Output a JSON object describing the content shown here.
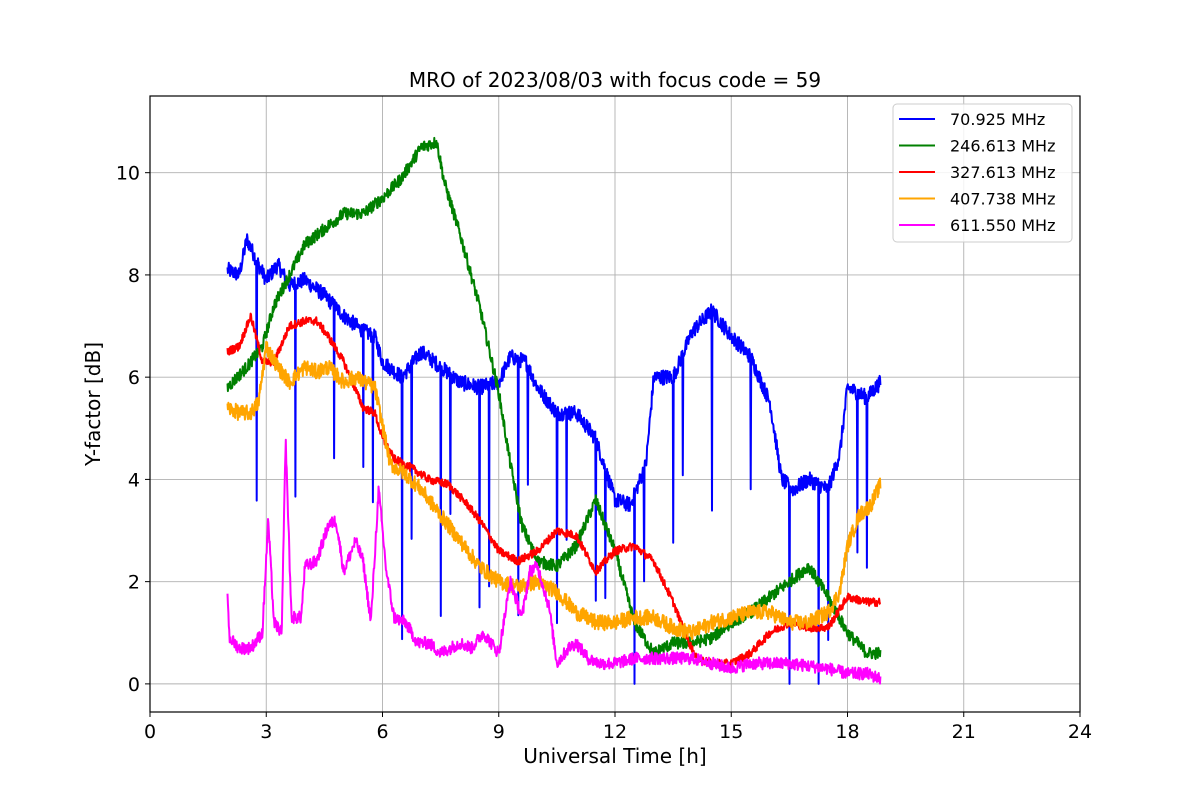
{
  "chart_data": {
    "type": "line",
    "title": "MRO of 2023/08/03 with focus code = 59",
    "xlabel": "Universal Time [h]",
    "ylabel": "Y-factor [dB]",
    "xlim": [
      0,
      24
    ],
    "ylim": [
      -0.55,
      11.5
    ],
    "x_ticks": [
      0,
      3,
      6,
      9,
      12,
      15,
      18,
      21,
      24
    ],
    "y_ticks": [
      0,
      2,
      4,
      6,
      8,
      10
    ],
    "grid": true,
    "legend_position": "top-right",
    "series": [
      {
        "name": " 70.925 MHz",
        "color": "#0000ff",
        "noise": 0.15,
        "dips": true,
        "points": [
          [
            2.0,
            8.1
          ],
          [
            2.3,
            8.0
          ],
          [
            2.5,
            8.7
          ],
          [
            2.8,
            8.2
          ],
          [
            3.0,
            7.9
          ],
          [
            3.3,
            8.2
          ],
          [
            3.6,
            7.8
          ],
          [
            4.0,
            7.9
          ],
          [
            4.5,
            7.6
          ],
          [
            5.0,
            7.2
          ],
          [
            5.5,
            6.9
          ],
          [
            5.8,
            6.8
          ],
          [
            6.0,
            6.3
          ],
          [
            6.5,
            6.0
          ],
          [
            7.0,
            6.5
          ],
          [
            7.5,
            6.2
          ],
          [
            8.0,
            5.9
          ],
          [
            8.5,
            5.8
          ],
          [
            9.0,
            5.9
          ],
          [
            9.3,
            6.4
          ],
          [
            9.7,
            6.3
          ],
          [
            10.0,
            5.8
          ],
          [
            10.5,
            5.3
          ],
          [
            11.0,
            5.3
          ],
          [
            11.5,
            4.8
          ],
          [
            12.0,
            3.6
          ],
          [
            12.4,
            3.5
          ],
          [
            12.8,
            4.3
          ],
          [
            13.0,
            6.0
          ],
          [
            13.5,
            6.0
          ],
          [
            14.0,
            6.9
          ],
          [
            14.5,
            7.3
          ],
          [
            15.0,
            6.8
          ],
          [
            15.5,
            6.4
          ],
          [
            16.0,
            5.5
          ],
          [
            16.3,
            4.0
          ],
          [
            16.6,
            3.8
          ],
          [
            17.0,
            4.0
          ],
          [
            17.5,
            3.8
          ],
          [
            17.8,
            4.5
          ],
          [
            18.0,
            5.8
          ],
          [
            18.5,
            5.6
          ],
          [
            18.85,
            5.9
          ]
        ]
      },
      {
        "name": "246.613 MHz",
        "color": "#008000",
        "noise": 0.12,
        "dips": false,
        "points": [
          [
            2.0,
            5.8
          ],
          [
            2.5,
            6.2
          ],
          [
            2.9,
            6.6
          ],
          [
            3.2,
            7.4
          ],
          [
            3.6,
            8.0
          ],
          [
            4.0,
            8.6
          ],
          [
            4.5,
            8.9
          ],
          [
            5.0,
            9.2
          ],
          [
            5.5,
            9.2
          ],
          [
            6.0,
            9.5
          ],
          [
            6.5,
            9.9
          ],
          [
            7.0,
            10.5
          ],
          [
            7.4,
            10.6
          ],
          [
            7.6,
            9.8
          ],
          [
            8.0,
            8.8
          ],
          [
            8.5,
            7.4
          ],
          [
            9.0,
            5.7
          ],
          [
            9.3,
            4.3
          ],
          [
            9.6,
            3.1
          ],
          [
            10.0,
            2.4
          ],
          [
            10.5,
            2.3
          ],
          [
            11.0,
            2.7
          ],
          [
            11.5,
            3.6
          ],
          [
            12.0,
            2.6
          ],
          [
            12.5,
            1.2
          ],
          [
            13.0,
            0.6
          ],
          [
            13.5,
            0.8
          ],
          [
            14.0,
            0.8
          ],
          [
            14.5,
            0.9
          ],
          [
            15.0,
            1.2
          ],
          [
            15.5,
            1.4
          ],
          [
            16.0,
            1.7
          ],
          [
            16.5,
            2.0
          ],
          [
            17.0,
            2.3
          ],
          [
            17.5,
            1.7
          ],
          [
            18.0,
            1.0
          ],
          [
            18.5,
            0.6
          ],
          [
            18.85,
            0.6
          ]
        ]
      },
      {
        "name": "327.613 MHz",
        "color": "#ff0000",
        "noise": 0.08,
        "dips": false,
        "points": [
          [
            2.0,
            6.5
          ],
          [
            2.3,
            6.6
          ],
          [
            2.6,
            7.2
          ],
          [
            2.9,
            6.3
          ],
          [
            3.2,
            6.3
          ],
          [
            3.6,
            7.0
          ],
          [
            4.0,
            7.1
          ],
          [
            4.3,
            7.1
          ],
          [
            4.6,
            6.8
          ],
          [
            5.0,
            6.3
          ],
          [
            5.5,
            5.4
          ],
          [
            5.8,
            5.3
          ],
          [
            6.0,
            4.8
          ],
          [
            6.3,
            4.4
          ],
          [
            6.8,
            4.2
          ],
          [
            7.2,
            4.0
          ],
          [
            7.7,
            3.9
          ],
          [
            8.2,
            3.5
          ],
          [
            8.6,
            3.1
          ],
          [
            9.0,
            2.6
          ],
          [
            9.5,
            2.4
          ],
          [
            10.0,
            2.6
          ],
          [
            10.5,
            3.0
          ],
          [
            11.0,
            2.9
          ],
          [
            11.5,
            2.2
          ],
          [
            12.0,
            2.6
          ],
          [
            12.5,
            2.7
          ],
          [
            13.0,
            2.4
          ],
          [
            13.5,
            1.6
          ],
          [
            13.8,
            1.0
          ],
          [
            14.1,
            0.5
          ],
          [
            14.5,
            0.4
          ],
          [
            15.0,
            0.4
          ],
          [
            15.5,
            0.6
          ],
          [
            16.0,
            1.0
          ],
          [
            16.5,
            1.2
          ],
          [
            17.0,
            1.1
          ],
          [
            17.5,
            1.1
          ],
          [
            18.0,
            1.7
          ],
          [
            18.5,
            1.6
          ],
          [
            18.85,
            1.6
          ]
        ]
      },
      {
        "name": "407.738 MHz",
        "color": "#ffa500",
        "noise": 0.15,
        "dips": false,
        "points": [
          [
            2.0,
            5.4
          ],
          [
            2.3,
            5.3
          ],
          [
            2.6,
            5.3
          ],
          [
            2.8,
            5.5
          ],
          [
            3.0,
            6.6
          ],
          [
            3.3,
            6.2
          ],
          [
            3.6,
            5.9
          ],
          [
            4.0,
            6.2
          ],
          [
            4.3,
            6.1
          ],
          [
            4.6,
            6.2
          ],
          [
            5.0,
            5.9
          ],
          [
            5.3,
            6.0
          ],
          [
            5.8,
            5.8
          ],
          [
            6.2,
            4.3
          ],
          [
            6.6,
            4.1
          ],
          [
            7.0,
            3.8
          ],
          [
            7.5,
            3.3
          ],
          [
            8.0,
            2.8
          ],
          [
            8.5,
            2.3
          ],
          [
            9.0,
            2.0
          ],
          [
            9.5,
            1.9
          ],
          [
            10.0,
            2.0
          ],
          [
            10.5,
            1.8
          ],
          [
            11.0,
            1.4
          ],
          [
            11.5,
            1.2
          ],
          [
            12.0,
            1.2
          ],
          [
            12.5,
            1.3
          ],
          [
            13.0,
            1.3
          ],
          [
            13.5,
            1.1
          ],
          [
            14.0,
            1.0
          ],
          [
            14.5,
            1.2
          ],
          [
            15.0,
            1.3
          ],
          [
            15.5,
            1.4
          ],
          [
            16.0,
            1.4
          ],
          [
            16.5,
            1.2
          ],
          [
            17.0,
            1.2
          ],
          [
            17.5,
            1.4
          ],
          [
            17.8,
            1.8
          ],
          [
            18.0,
            2.7
          ],
          [
            18.3,
            3.3
          ],
          [
            18.6,
            3.5
          ],
          [
            18.85,
            3.9
          ]
        ]
      },
      {
        "name": "611.550 MHz",
        "color": "#ff00ff",
        "noise": 0.12,
        "dips": false,
        "points": [
          [
            2.0,
            1.8
          ],
          [
            2.05,
            0.9
          ],
          [
            2.3,
            0.7
          ],
          [
            2.6,
            0.7
          ],
          [
            2.9,
            1.0
          ],
          [
            3.05,
            3.2
          ],
          [
            3.2,
            1.2
          ],
          [
            3.4,
            1.0
          ],
          [
            3.5,
            4.8
          ],
          [
            3.65,
            1.3
          ],
          [
            3.9,
            1.3
          ],
          [
            4.0,
            2.3
          ],
          [
            4.3,
            2.4
          ],
          [
            4.6,
            3.1
          ],
          [
            4.8,
            3.2
          ],
          [
            5.0,
            2.2
          ],
          [
            5.3,
            2.8
          ],
          [
            5.5,
            2.4
          ],
          [
            5.7,
            1.2
          ],
          [
            5.9,
            3.8
          ],
          [
            6.1,
            2.2
          ],
          [
            6.3,
            1.3
          ],
          [
            6.6,
            1.2
          ],
          [
            6.9,
            0.8
          ],
          [
            7.2,
            0.8
          ],
          [
            7.5,
            0.6
          ],
          [
            8.0,
            0.8
          ],
          [
            8.3,
            0.7
          ],
          [
            8.6,
            1.0
          ],
          [
            9.0,
            0.6
          ],
          [
            9.3,
            2.0
          ],
          [
            9.6,
            1.3
          ],
          [
            9.8,
            2.2
          ],
          [
            10.0,
            2.3
          ],
          [
            10.3,
            1.5
          ],
          [
            10.5,
            0.4
          ],
          [
            10.8,
            0.7
          ],
          [
            11.0,
            0.8
          ],
          [
            11.3,
            0.5
          ],
          [
            11.6,
            0.4
          ],
          [
            12.0,
            0.4
          ],
          [
            12.5,
            0.5
          ],
          [
            13.0,
            0.5
          ],
          [
            13.5,
            0.5
          ],
          [
            14.0,
            0.5
          ],
          [
            14.5,
            0.4
          ],
          [
            15.0,
            0.3
          ],
          [
            15.5,
            0.4
          ],
          [
            16.0,
            0.4
          ],
          [
            16.5,
            0.4
          ],
          [
            17.0,
            0.35
          ],
          [
            17.5,
            0.3
          ],
          [
            18.0,
            0.2
          ],
          [
            18.5,
            0.2
          ],
          [
            18.85,
            0.1
          ]
        ]
      }
    ]
  }
}
